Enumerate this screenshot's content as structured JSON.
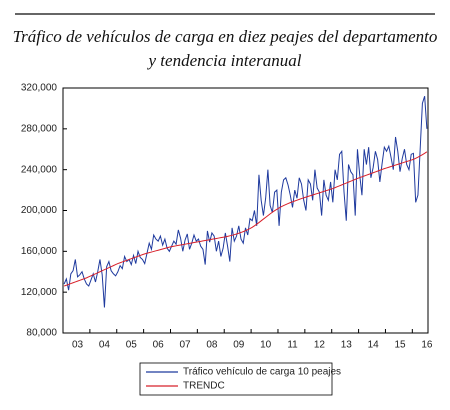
{
  "chart_data": {
    "type": "line",
    "title": [
      "Tráfico de vehículos de carga en diez peajes del departamento",
      "y tendencia interanual"
    ],
    "categories": [
      null,
      null,
      null,
      null,
      null,
      null,
      "03",
      null,
      null,
      null,
      null,
      null,
      null,
      null,
      null,
      null,
      null,
      null,
      "04",
      null,
      null,
      null,
      null,
      null,
      null,
      null,
      null,
      null,
      null,
      null,
      "05",
      null,
      null,
      null,
      null,
      null,
      null,
      null,
      null,
      null,
      null,
      null,
      "06",
      null,
      null,
      null,
      null,
      null,
      null,
      null,
      null,
      null,
      null,
      null,
      "07",
      null,
      null,
      null,
      null,
      null,
      null,
      null,
      null,
      null,
      null,
      null,
      "08",
      null,
      null,
      null,
      null,
      null,
      null,
      null,
      null,
      null,
      null,
      null,
      "09",
      null,
      null,
      null,
      null,
      null,
      null,
      null,
      null,
      null,
      null,
      null,
      "10",
      null,
      null,
      null,
      null,
      null,
      null,
      null,
      null,
      null,
      null,
      null,
      "11",
      null,
      null,
      null,
      null,
      null,
      null,
      null,
      null,
      null,
      null,
      null,
      "12",
      null,
      null,
      null,
      null,
      null,
      null,
      null,
      null,
      null,
      null,
      null,
      "13",
      null,
      null,
      null,
      null,
      null,
      null,
      null,
      null,
      null,
      null,
      null,
      "14",
      null,
      null,
      null,
      null,
      null,
      null,
      null,
      null,
      null,
      null,
      null,
      "15",
      null,
      null,
      null,
      null,
      null,
      null,
      null,
      null,
      null,
      null,
      null,
      "16"
    ],
    "series": [
      {
        "name": "Tráfico vehículo de  carga 10 peajes",
        "color": "#1f3a9e",
        "values": [
          128000,
          133000,
          122000,
          138000,
          141000,
          152000,
          135000,
          137000,
          140000,
          133000,
          128000,
          126000,
          132000,
          138000,
          130000,
          140000,
          152000,
          137000,
          105000,
          145000,
          150000,
          141000,
          138000,
          136000,
          140000,
          146000,
          143000,
          155000,
          150000,
          152000,
          147000,
          156000,
          148000,
          160000,
          154000,
          152000,
          148000,
          158000,
          168000,
          162000,
          176000,
          172000,
          170000,
          175000,
          166000,
          172000,
          163000,
          160000,
          165000,
          170000,
          167000,
          181000,
          173000,
          160000,
          171000,
          177000,
          162000,
          168000,
          176000,
          170000,
          172000,
          165000,
          162000,
          147000,
          180000,
          169000,
          178000,
          175000,
          160000,
          170000,
          155000,
          163000,
          178000,
          165000,
          150000,
          183000,
          170000,
          175000,
          185000,
          172000,
          168000,
          183000,
          176000,
          192000,
          190000,
          200000,
          185000,
          235000,
          210000,
          195000,
          212000,
          240000,
          205000,
          198000,
          218000,
          220000,
          185000,
          218000,
          230000,
          232000,
          225000,
          215000,
          203000,
          220000,
          212000,
          232000,
          226000,
          210000,
          200000,
          230000,
          226000,
          210000,
          240000,
          222000,
          218000,
          195000,
          230000,
          215000,
          210000,
          228000,
          208000,
          240000,
          230000,
          255000,
          258000,
          218000,
          190000,
          245000,
          238000,
          235000,
          195000,
          260000,
          235000,
          215000,
          260000,
          245000,
          262000,
          232000,
          242000,
          258000,
          250000,
          228000,
          246000,
          262000,
          258000,
          263000,
          252000,
          240000,
          272000,
          258000,
          238000,
          251000,
          260000,
          245000,
          240000,
          255000,
          256000,
          208000,
          215000,
          260000,
          305000,
          312000,
          280000
        ]
      },
      {
        "name": "TRENDC",
        "color": "#d8202a",
        "values": [
          126000,
          126800,
          127600,
          128400,
          129200,
          130000,
          130800,
          131600,
          132400,
          133200,
          134000,
          135000,
          136000,
          137000,
          138000,
          139000,
          140000,
          141000,
          142000,
          143000,
          144000,
          145000,
          146000,
          147000,
          148000,
          148800,
          149600,
          150400,
          151200,
          152000,
          152800,
          153600,
          154400,
          155200,
          156000,
          156800,
          157500,
          158100,
          158700,
          159300,
          159900,
          160500,
          161100,
          161700,
          162300,
          162900,
          163500,
          164100,
          164600,
          165000,
          165400,
          165800,
          166200,
          166600,
          167000,
          167400,
          167800,
          168200,
          168600,
          169000,
          169400,
          169800,
          170200,
          170600,
          171000,
          171400,
          171800,
          172200,
          172600,
          173000,
          173400,
          173800,
          174200,
          174700,
          175200,
          175700,
          176300,
          177000,
          177700,
          178500,
          179300,
          180200,
          181200,
          182300,
          183500,
          185000,
          186600,
          188200,
          189900,
          191600,
          193300,
          195000,
          196700,
          198300,
          199800,
          201200,
          202500,
          203700,
          204800,
          205800,
          206800,
          207700,
          208500,
          209300,
          210100,
          210900,
          211700,
          212400,
          213100,
          213800,
          214500,
          215200,
          215900,
          216600,
          217300,
          218000,
          218700,
          219400,
          220100,
          220800,
          221500,
          222400,
          223300,
          224200,
          225100,
          226000,
          226900,
          227800,
          228700,
          229600,
          230500,
          231400,
          232200,
          233000,
          233800,
          234600,
          235400,
          236200,
          237000,
          237800,
          238600,
          239400,
          240200,
          241000,
          241700,
          242400,
          243100,
          243800,
          244500,
          245200,
          245900,
          246600,
          247300,
          248000,
          248700,
          249400,
          250100,
          251100,
          252200,
          253400,
          254700,
          256000,
          257500
        ]
      }
    ],
    "ylim": [
      80000,
      320000
    ],
    "yticks": [
      {
        "value": 80000,
        "label": "80,000"
      },
      {
        "value": 120000,
        "label": "120,000"
      },
      {
        "value": 160000,
        "label": "160,000"
      },
      {
        "value": 200000,
        "label": "200,000"
      },
      {
        "value": 240000,
        "label": "240,000"
      },
      {
        "value": 280000,
        "label": "280,000"
      },
      {
        "value": 320000,
        "label": "320,000"
      }
    ],
    "grid": false
  }
}
